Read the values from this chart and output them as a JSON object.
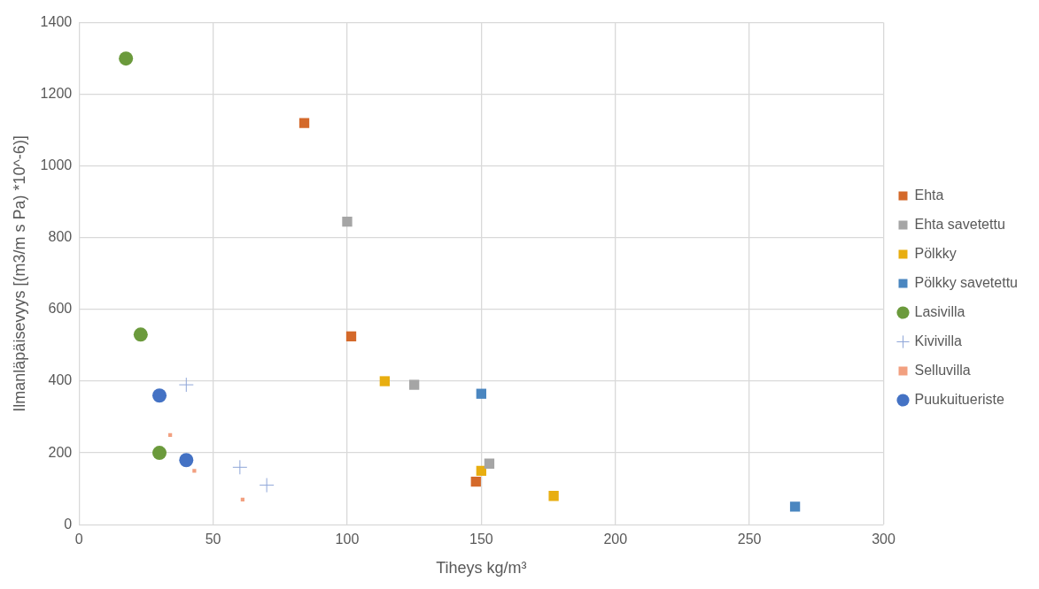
{
  "chart_data": {
    "type": "scatter",
    "xlabel": "Tiheys kg/m³",
    "ylabel": "Ilmanläpäisevyys [(m3/m s Pa) *10^-6)]",
    "xlim": [
      0,
      300
    ],
    "xticks": [
      0,
      50,
      100,
      150,
      200,
      250,
      300
    ],
    "ylim": [
      0,
      1400
    ],
    "yticks": [
      0,
      200,
      400,
      600,
      800,
      1000,
      1200,
      1400
    ],
    "grid": true,
    "legend": "right",
    "series": [
      {
        "name": "Ehta",
        "color": "#d4692a",
        "marker": "square",
        "x": [
          84,
          101.5,
          148
        ],
        "values": [
          1120,
          525,
          120
        ]
      },
      {
        "name": "Ehta savetettu",
        "color": "#a5a5a5",
        "marker": "square",
        "x": [
          100,
          125,
          153
        ],
        "values": [
          845,
          390,
          170
        ]
      },
      {
        "name": "Pölkky",
        "color": "#e8ae10",
        "marker": "square",
        "x": [
          114,
          150,
          177
        ],
        "values": [
          400,
          150,
          80
        ]
      },
      {
        "name": "Pölkky savetettu",
        "color": "#4a86c0",
        "marker": "square",
        "x": [
          150,
          267
        ],
        "values": [
          365,
          50
        ]
      },
      {
        "name": "Lasivilla",
        "color": "#6b9a3c",
        "marker": "circle",
        "x": [
          17.5,
          23,
          30
        ],
        "values": [
          1300,
          530,
          200
        ]
      },
      {
        "name": "Kivivilla",
        "color": "#8fa6d8",
        "marker": "cross",
        "x": [
          40,
          60,
          70
        ],
        "values": [
          390,
          160,
          110
        ]
      },
      {
        "name": "Selluvilla",
        "color": "#f2a080",
        "marker": "square",
        "x": [
          34,
          43,
          61
        ],
        "values": [
          250,
          150,
          70
        ]
      },
      {
        "name": "Puukuitueriste",
        "color": "#4472c4",
        "marker": "circle",
        "x": [
          30,
          40
        ],
        "values": [
          360,
          180
        ]
      }
    ]
  }
}
